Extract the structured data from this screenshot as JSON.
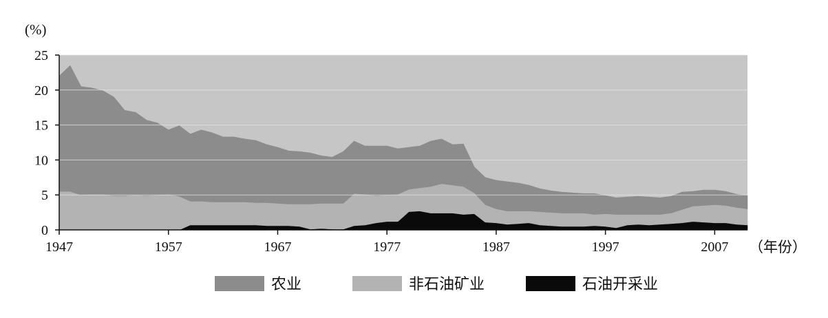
{
  "chart_data": {
    "type": "area",
    "stacked": true,
    "ylabel": "(%)",
    "xlabel": "（年份）",
    "ylim": [
      0,
      25
    ],
    "xlim": [
      1947,
      2010
    ],
    "yticks": [
      0,
      5,
      10,
      15,
      20,
      25
    ],
    "xticks": [
      1947,
      1957,
      1967,
      1977,
      1987,
      1997,
      2007
    ],
    "grid": true,
    "legend_position": "bottom",
    "x": [
      1947,
      1948,
      1949,
      1950,
      1951,
      1952,
      1953,
      1954,
      1955,
      1956,
      1957,
      1958,
      1959,
      1960,
      1961,
      1962,
      1963,
      1964,
      1965,
      1966,
      1967,
      1968,
      1969,
      1970,
      1971,
      1972,
      1973,
      1974,
      1975,
      1976,
      1977,
      1978,
      1979,
      1980,
      1981,
      1982,
      1983,
      1984,
      1985,
      1986,
      1987,
      1988,
      1989,
      1990,
      1991,
      1992,
      1993,
      1994,
      1995,
      1996,
      1997,
      1998,
      1999,
      2000,
      2001,
      2002,
      2003,
      2004,
      2005,
      2006,
      2007,
      2008,
      2009,
      2010
    ],
    "series": [
      {
        "name": "石油开采业",
        "color": "#0a0a0a",
        "values": [
          0,
          0,
          0,
          0,
          0,
          0,
          0,
          0,
          0,
          0,
          0,
          0,
          0.7,
          0.7,
          0.7,
          0.7,
          0.7,
          0.7,
          0.7,
          0.6,
          0.6,
          0.6,
          0.5,
          0.1,
          0.2,
          0.1,
          0.1,
          0.6,
          0.7,
          1.0,
          1.2,
          1.2,
          2.6,
          2.7,
          2.4,
          2.4,
          2.4,
          2.2,
          2.3,
          1.1,
          1.0,
          0.8,
          0.9,
          1.0,
          0.7,
          0.6,
          0.5,
          0.5,
          0.5,
          0.6,
          0.5,
          0.3,
          0.7,
          0.8,
          0.7,
          0.8,
          0.9,
          1.0,
          1.2,
          1.1,
          1.0,
          1.0,
          0.8,
          0.7
        ]
      },
      {
        "name": "非石油矿业",
        "color": "#b3b3b3",
        "values": [
          5.5,
          5.5,
          5.0,
          5.1,
          5.1,
          4.9,
          4.9,
          5.0,
          4.9,
          5.0,
          5.1,
          4.8,
          3.4,
          3.4,
          3.3,
          3.3,
          3.3,
          3.3,
          3.2,
          3.3,
          3.2,
          3.1,
          3.2,
          3.6,
          3.6,
          3.7,
          3.7,
          4.6,
          4.4,
          3.9,
          3.8,
          3.9,
          3.2,
          3.3,
          3.8,
          4.2,
          4.0,
          4.0,
          3.0,
          2.5,
          2.0,
          1.9,
          1.8,
          1.7,
          1.9,
          1.9,
          1.9,
          1.9,
          1.9,
          1.6,
          1.8,
          1.9,
          1.5,
          1.4,
          1.5,
          1.4,
          1.5,
          1.9,
          2.2,
          2.4,
          2.6,
          2.5,
          2.4,
          2.3
        ]
      },
      {
        "name": "农业",
        "color": "#8c8c8c",
        "values": [
          16.5,
          18.0,
          15.5,
          15.2,
          14.8,
          14.1,
          12.2,
          11.8,
          10.8,
          10.3,
          9.2,
          10.1,
          9.6,
          10.2,
          9.9,
          9.3,
          9.3,
          9.0,
          8.9,
          8.3,
          8.0,
          7.6,
          7.5,
          7.3,
          6.8,
          6.6,
          7.4,
          7.5,
          6.9,
          7.1,
          7.0,
          6.5,
          6.0,
          6.0,
          6.5,
          6.4,
          5.8,
          6.1,
          3.7,
          3.9,
          4.1,
          4.2,
          4.0,
          3.7,
          3.3,
          3.1,
          3.0,
          2.9,
          2.8,
          3.0,
          2.6,
          2.4,
          2.5,
          2.6,
          2.5,
          2.4,
          2.4,
          2.5,
          2.1,
          2.2,
          2.1,
          2.0,
          1.9,
          1.9
        ]
      }
    ],
    "legend": [
      {
        "label": "农业",
        "color": "#8c8c8c"
      },
      {
        "label": "非石油矿业",
        "color": "#b3b3b3"
      },
      {
        "label": "石油开采业",
        "color": "#0a0a0a"
      }
    ],
    "plot_background": "#c6c6c6",
    "grid_color": "#e6e6e6"
  }
}
